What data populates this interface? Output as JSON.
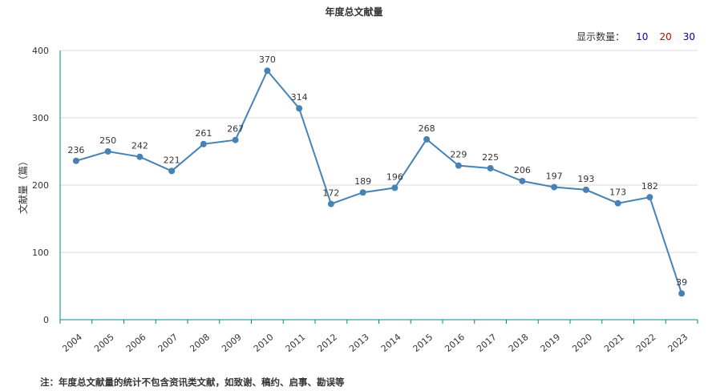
{
  "title": "年度总文献量",
  "display_count": {
    "label": "显示数量：",
    "options": [
      {
        "label": "10",
        "color": "#0000cc"
      },
      {
        "label": "20",
        "color": "#cc0000"
      },
      {
        "label": "30",
        "color": "#000099"
      }
    ]
  },
  "footnote": "注：年度总文献量的统计不包含资讯类文献，如致谢、稿约、启事、勘误等",
  "colors": {
    "line": "#4682b4",
    "axis": "#008b8b",
    "grid": "#d8d8d8"
  },
  "chart_data": {
    "type": "line",
    "title": "年度总文献量",
    "xlabel": "",
    "ylabel": "文献量（篇）",
    "ylim": [
      0,
      400
    ],
    "yticks": [
      0,
      100,
      200,
      300,
      400
    ],
    "grid": true,
    "categories": [
      "2004",
      "2005",
      "2006",
      "2007",
      "2008",
      "2009",
      "2010",
      "2011",
      "2012",
      "2013",
      "2014",
      "2015",
      "2016",
      "2017",
      "2018",
      "2019",
      "2020",
      "2021",
      "2022",
      "2023"
    ],
    "series": [
      {
        "values": [
          236,
          250,
          242,
          221,
          261,
          267,
          370,
          314,
          172,
          189,
          196,
          268,
          229,
          225,
          206,
          197,
          193,
          173,
          182,
          39
        ]
      }
    ]
  }
}
